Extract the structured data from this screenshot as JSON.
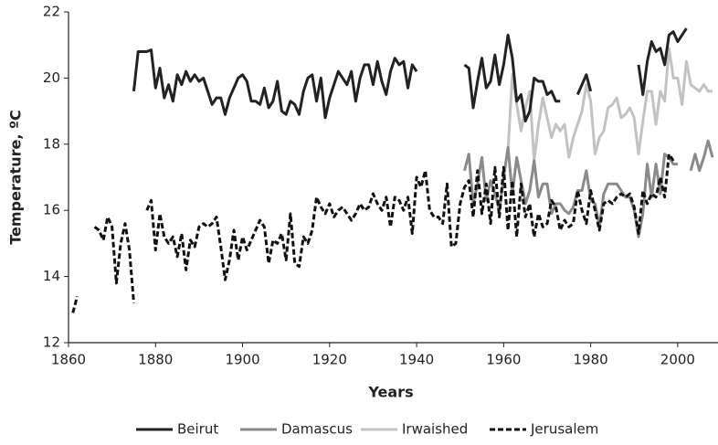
{
  "chart_data": {
    "type": "line",
    "x_label": "Years",
    "y_label": "Temperature, ºC",
    "xlim": [
      1860,
      2008
    ],
    "xticks": [
      1860,
      1880,
      1900,
      1920,
      1940,
      1960,
      1980,
      2000
    ],
    "ylim": [
      12,
      22
    ],
    "yticks": [
      12,
      14,
      16,
      18,
      20,
      22
    ],
    "grid": false,
    "legend": "bottom",
    "series": [
      {
        "name": "Beirut",
        "color": "#222222",
        "line_style": "solid",
        "x": [
          1875,
          1876,
          1877,
          1878,
          1879,
          1880,
          1881,
          1882,
          1883,
          1884,
          1885,
          1886,
          1887,
          1888,
          1889,
          1890,
          1891,
          1892,
          1893,
          1894,
          1895,
          1896,
          1897,
          1898,
          1899,
          1900,
          1901,
          1902,
          1903,
          1904,
          1905,
          1906,
          1907,
          1908,
          1909,
          1910,
          1911,
          1912,
          1913,
          1914,
          1915,
          1916,
          1917,
          1918,
          1919,
          1920,
          1921,
          1922,
          1923,
          1924,
          1925,
          1926,
          1927,
          1928,
          1929,
          1930,
          1931,
          1932,
          1933,
          1934,
          1935,
          1936,
          1937,
          1938,
          1939,
          1940,
          1941,
          1942,
          1943,
          1944,
          1945,
          1946,
          1947,
          1948,
          1949,
          1950,
          1951,
          1952,
          1953,
          1954,
          1955,
          1956,
          1957,
          1958,
          1959,
          1960,
          1961,
          1962,
          1963,
          1964,
          1965,
          1966,
          1967,
          1968,
          1969,
          1970,
          1971,
          1972,
          1973,
          1974,
          1975,
          1976,
          1977,
          1978,
          1979,
          1980,
          1981,
          1982,
          1983,
          1984,
          1985,
          1986,
          1987,
          1988,
          1989,
          1990,
          1991,
          1992,
          1993,
          1994,
          1995,
          1996,
          1997,
          1998,
          1999,
          2000,
          2001,
          2002
        ],
        "values": [
          19.6,
          20.8,
          20.8,
          20.8,
          20.85,
          19.7,
          20.3,
          19.4,
          19.8,
          19.3,
          20.1,
          19.8,
          20.2,
          19.9,
          20.1,
          19.9,
          20.0,
          19.6,
          19.2,
          19.4,
          19.4,
          18.9,
          19.4,
          19.7,
          20.0,
          20.1,
          19.9,
          19.3,
          19.3,
          19.2,
          19.7,
          19.1,
          19.3,
          19.9,
          19.0,
          18.9,
          19.3,
          19.2,
          18.9,
          19.6,
          20.0,
          20.1,
          19.3,
          20.0,
          18.8,
          19.4,
          19.8,
          20.2,
          20.0,
          19.8,
          20.2,
          19.3,
          20.0,
          20.4,
          20.4,
          19.8,
          20.5,
          19.9,
          19.5,
          20.2,
          20.6,
          20.4,
          20.5,
          19.7,
          20.4,
          20.2,
          null,
          null,
          null,
          null,
          null,
          null,
          null,
          null,
          null,
          null,
          20.4,
          20.3,
          19.1,
          19.9,
          20.6,
          19.7,
          19.9,
          20.7,
          19.8,
          20.4,
          21.3,
          20.6,
          19.3,
          19.5,
          18.7,
          19.0,
          20.0,
          19.9,
          19.9,
          19.5,
          19.6,
          19.3,
          19.3,
          null,
          null,
          null,
          19.5,
          19.8,
          20.1,
          19.6,
          null,
          null,
          null,
          null,
          null,
          null,
          null,
          null,
          null,
          null,
          20.4,
          19.5,
          20.5,
          21.1,
          20.8,
          20.9,
          20.4,
          21.3,
          21.4,
          21.1,
          21.3,
          21.5
        ]
      },
      {
        "name": "Damascus",
        "color": "#8a8a8a",
        "line_style": "solid",
        "x": [
          1951,
          1952,
          1953,
          1954,
          1955,
          1956,
          1957,
          1958,
          1959,
          1960,
          1961,
          1962,
          1963,
          1964,
          1965,
          1966,
          1967,
          1968,
          1969,
          1970,
          1971,
          1972,
          1973,
          1974,
          1975,
          1976,
          1977,
          1978,
          1979,
          1980,
          1981,
          1982,
          1983,
          1984,
          1985,
          1986,
          1987,
          1988,
          1989,
          1990,
          1991,
          1992,
          1993,
          1994,
          1995,
          1996,
          1997,
          1998,
          1999,
          2000,
          2001,
          2002,
          2003,
          2004,
          2005,
          2006,
          2007,
          2008
        ],
        "values": [
          17.2,
          17.7,
          16.2,
          16.8,
          17.6,
          16.3,
          16.9,
          16.5,
          16.0,
          17.0,
          17.9,
          16.5,
          17.6,
          16.9,
          16.2,
          16.6,
          17.5,
          16.4,
          16.8,
          16.8,
          15.9,
          16.2,
          16.2,
          16.0,
          15.9,
          16.1,
          16.6,
          16.6,
          17.2,
          16.3,
          16.2,
          15.5,
          16.5,
          16.8,
          16.8,
          16.8,
          16.6,
          16.4,
          16.4,
          16.0,
          15.2,
          15.9,
          17.4,
          16.4,
          17.4,
          16.5,
          17.7,
          17.6,
          17.4,
          17.4,
          null,
          null,
          17.2,
          17.7,
          17.2,
          17.6,
          18.1,
          17.6
        ]
      },
      {
        "name": "Irwaished",
        "color": "#c2c2c2",
        "line_style": "solid",
        "x": [
          1961,
          1962,
          1963,
          1964,
          1965,
          1966,
          1967,
          1968,
          1969,
          1970,
          1971,
          1972,
          1973,
          1974,
          1975,
          1976,
          1977,
          1978,
          1979,
          1980,
          1981,
          1982,
          1983,
          1984,
          1985,
          1986,
          1987,
          1988,
          1989,
          1990,
          1991,
          1992,
          1993,
          1994,
          1995,
          1996,
          1997,
          1998,
          1999,
          2000,
          2001,
          2002,
          2003,
          2004,
          2005,
          2006,
          2007,
          2008
        ],
        "values": [
          17.8,
          20.1,
          19.2,
          18.4,
          19.1,
          19.6,
          17.5,
          18.6,
          19.4,
          18.8,
          18.2,
          18.6,
          18.4,
          18.6,
          17.6,
          18.2,
          18.6,
          19.0,
          19.8,
          19.3,
          17.7,
          18.2,
          18.4,
          19.1,
          19.2,
          19.4,
          18.8,
          18.9,
          19.1,
          18.8,
          17.7,
          18.7,
          19.6,
          19.6,
          18.6,
          19.6,
          19.3,
          20.9,
          20.0,
          20.0,
          19.2,
          20.5,
          19.8,
          19.7,
          19.6,
          19.8,
          19.6,
          19.6
        ]
      },
      {
        "name": "Jerusalem",
        "color": "#111111",
        "line_style": "dashed",
        "x": [
          1861,
          1862,
          1863,
          1864,
          1865,
          1866,
          1867,
          1868,
          1869,
          1870,
          1871,
          1872,
          1873,
          1874,
          1875,
          1876,
          1877,
          1878,
          1879,
          1880,
          1881,
          1882,
          1883,
          1884,
          1885,
          1886,
          1887,
          1888,
          1889,
          1890,
          1891,
          1892,
          1893,
          1894,
          1895,
          1896,
          1897,
          1898,
          1899,
          1900,
          1901,
          1902,
          1903,
          1904,
          1905,
          1906,
          1907,
          1908,
          1909,
          1910,
          1911,
          1912,
          1913,
          1914,
          1915,
          1916,
          1917,
          1918,
          1919,
          1920,
          1921,
          1922,
          1923,
          1924,
          1925,
          1926,
          1927,
          1928,
          1929,
          1930,
          1931,
          1932,
          1933,
          1934,
          1935,
          1936,
          1937,
          1938,
          1939,
          1940,
          1941,
          1942,
          1943,
          1944,
          1945,
          1946,
          1947,
          1948,
          1949,
          1950,
          1951,
          1952,
          1953,
          1954,
          1955,
          1956,
          1957,
          1958,
          1959,
          1960,
          1961,
          1962,
          1963,
          1964,
          1965,
          1966,
          1967,
          1968,
          1969,
          1970,
          1971,
          1972,
          1973,
          1974,
          1975,
          1976,
          1977,
          1978,
          1979,
          1980,
          1981,
          1982,
          1983,
          1984,
          1985,
          1986,
          1987,
          1988,
          1989,
          1990,
          1991,
          1992,
          1993,
          1994,
          1995,
          1996,
          1997,
          1998,
          1999
        ],
        "values": [
          12.9,
          13.4,
          null,
          null,
          null,
          15.5,
          15.4,
          15.1,
          15.8,
          15.5,
          13.8,
          15.0,
          15.6,
          14.8,
          13.2,
          null,
          null,
          16.0,
          16.3,
          14.8,
          15.9,
          15.2,
          15.0,
          15.2,
          14.6,
          15.3,
          14.2,
          15.1,
          14.9,
          15.5,
          15.6,
          15.5,
          15.6,
          15.8,
          14.9,
          13.9,
          14.5,
          15.4,
          14.5,
          15.2,
          14.8,
          15.1,
          15.4,
          15.7,
          15.5,
          14.4,
          15.1,
          15.0,
          15.3,
          14.5,
          15.9,
          14.4,
          14.3,
          15.2,
          15.0,
          15.4,
          16.4,
          16.1,
          15.9,
          16.2,
          15.8,
          16.0,
          16.1,
          15.9,
          15.7,
          15.9,
          16.2,
          16.0,
          16.1,
          16.5,
          16.2,
          16.0,
          16.4,
          15.5,
          16.4,
          16.3,
          16.0,
          16.4,
          15.3,
          17.0,
          16.7,
          17.2,
          16.0,
          15.8,
          15.8,
          15.6,
          16.8,
          14.9,
          15.0,
          16.2,
          16.7,
          16.9,
          15.8,
          17.2,
          15.9,
          16.8,
          15.6,
          17.3,
          15.8,
          17.3,
          15.4,
          16.9,
          15.2,
          16.8,
          15.8,
          16.2,
          15.2,
          15.9,
          15.5,
          15.6,
          16.3,
          16.1,
          15.4,
          15.7,
          15.5,
          15.6,
          16.6,
          16.0,
          15.6,
          16.6,
          16.0,
          15.4,
          16.2,
          16.3,
          16.2,
          16.4,
          16.5,
          16.4,
          16.5,
          16.1,
          15.3,
          16.6,
          16.2,
          16.5,
          16.4,
          17.0,
          16.4,
          17.7,
          17.5
        ]
      }
    ]
  }
}
